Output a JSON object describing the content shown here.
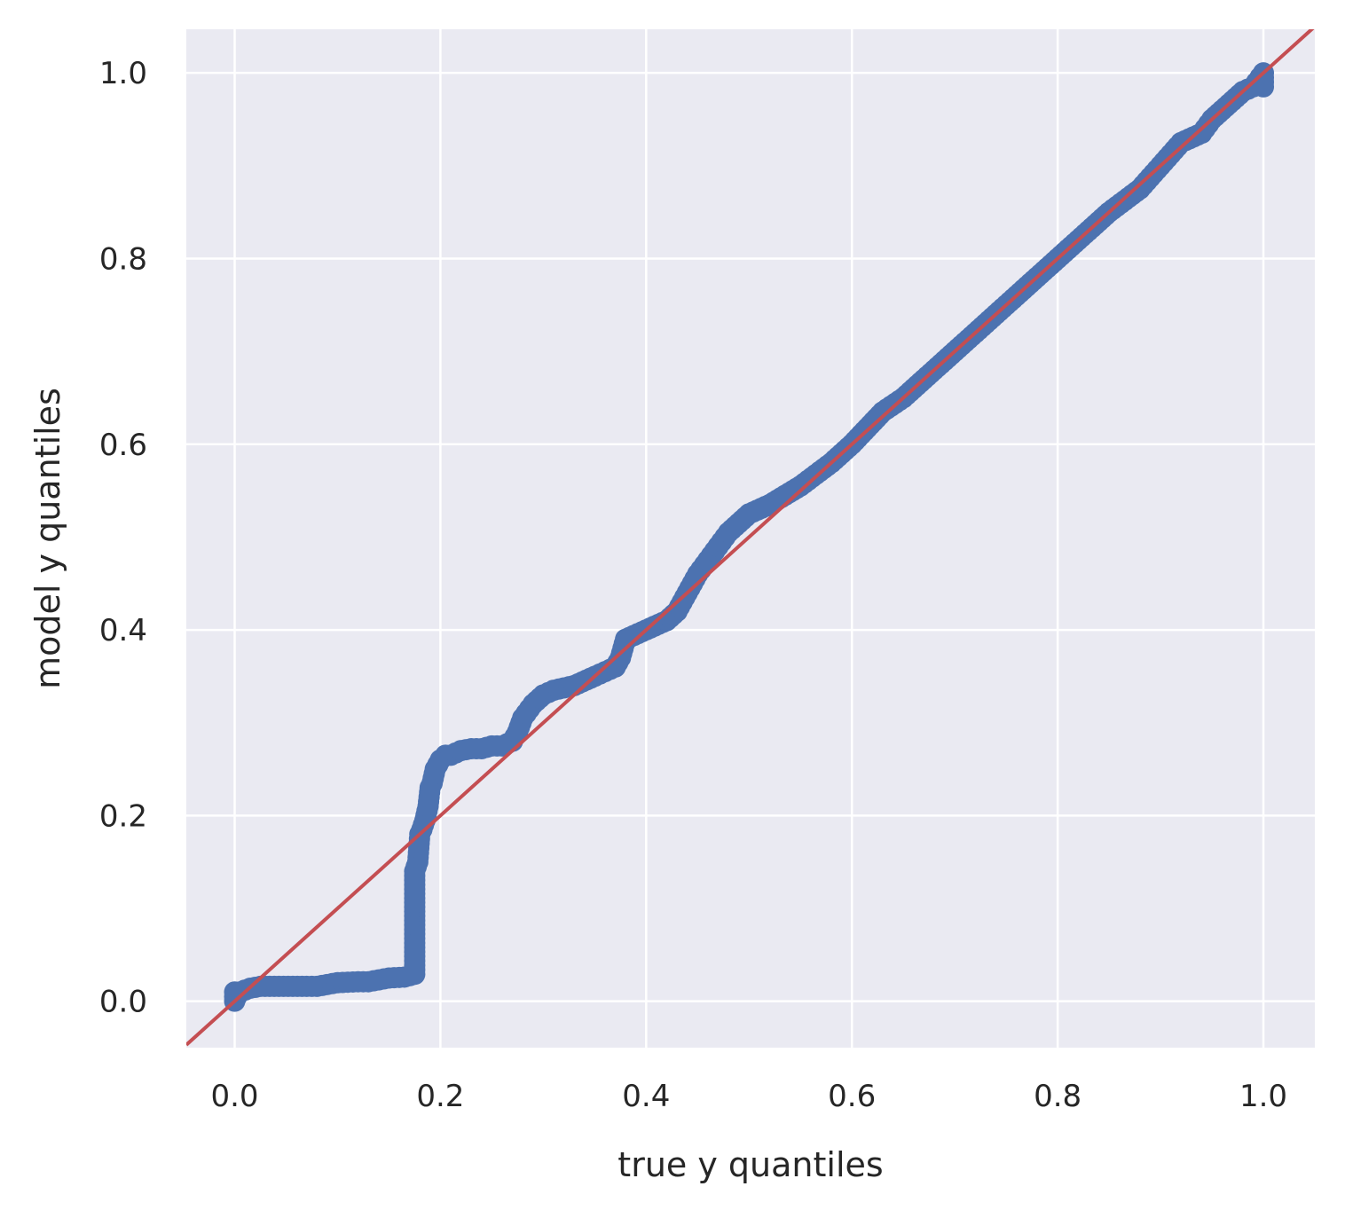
{
  "chart_data": {
    "type": "scatter",
    "title": "",
    "xlabel": "true y quantiles",
    "ylabel": "model y quantiles",
    "xlim": [
      -0.047,
      1.05
    ],
    "ylim": [
      -0.05,
      1.047
    ],
    "xticks": [
      "0.0",
      "0.2",
      "0.4",
      "0.6",
      "0.8",
      "1.0"
    ],
    "yticks": [
      "0.0",
      "0.2",
      "0.4",
      "0.6",
      "0.8",
      "1.0"
    ],
    "grid": true,
    "legend": "none",
    "colors": {
      "background": "#eaeaf2",
      "grid": "#ffffff",
      "points": "#4c72b0",
      "reference_line": "#c44e52",
      "text": "#262626"
    },
    "series": [
      {
        "type": "scatter",
        "x": [
          0.0,
          0.0,
          0.002,
          0.005,
          0.01,
          0.015,
          0.02,
          0.025,
          0.07,
          0.08,
          0.09,
          0.1,
          0.12,
          0.13,
          0.14,
          0.15,
          0.165,
          0.175,
          0.175,
          0.178,
          0.18,
          0.182,
          0.185,
          0.188,
          0.19,
          0.192,
          0.195,
          0.2,
          0.205,
          0.21,
          0.22,
          0.23,
          0.24,
          0.25,
          0.26,
          0.27,
          0.275,
          0.28,
          0.29,
          0.3,
          0.31,
          0.33,
          0.35,
          0.36,
          0.37,
          0.375,
          0.38,
          0.4,
          0.42,
          0.43,
          0.44,
          0.45,
          0.46,
          0.47,
          0.48,
          0.5,
          0.52,
          0.55,
          0.58,
          0.6,
          0.63,
          0.65,
          0.7,
          0.75,
          0.8,
          0.85,
          0.88,
          0.9,
          0.92,
          0.94,
          0.95,
          0.96,
          0.97,
          0.98,
          0.99,
          1.0,
          1.0,
          1.0,
          1.0
        ],
        "y": [
          0.0,
          0.01,
          0.005,
          0.01,
          0.012,
          0.014,
          0.015,
          0.016,
          0.016,
          0.016,
          0.018,
          0.02,
          0.021,
          0.021,
          0.023,
          0.025,
          0.026,
          0.029,
          0.14,
          0.15,
          0.18,
          0.185,
          0.195,
          0.21,
          0.23,
          0.235,
          0.25,
          0.26,
          0.265,
          0.265,
          0.27,
          0.272,
          0.272,
          0.275,
          0.275,
          0.28,
          0.29,
          0.305,
          0.32,
          0.33,
          0.335,
          0.34,
          0.35,
          0.355,
          0.36,
          0.37,
          0.39,
          0.4,
          0.41,
          0.42,
          0.44,
          0.46,
          0.475,
          0.49,
          0.505,
          0.525,
          0.535,
          0.555,
          0.58,
          0.6,
          0.635,
          0.65,
          0.7,
          0.75,
          0.8,
          0.85,
          0.875,
          0.9,
          0.925,
          0.935,
          0.95,
          0.96,
          0.97,
          0.98,
          0.985,
          1.0,
          0.995,
          0.99,
          0.985
        ]
      },
      {
        "type": "line",
        "x": [
          -0.047,
          1.05
        ],
        "y": [
          -0.047,
          1.05
        ]
      }
    ]
  }
}
